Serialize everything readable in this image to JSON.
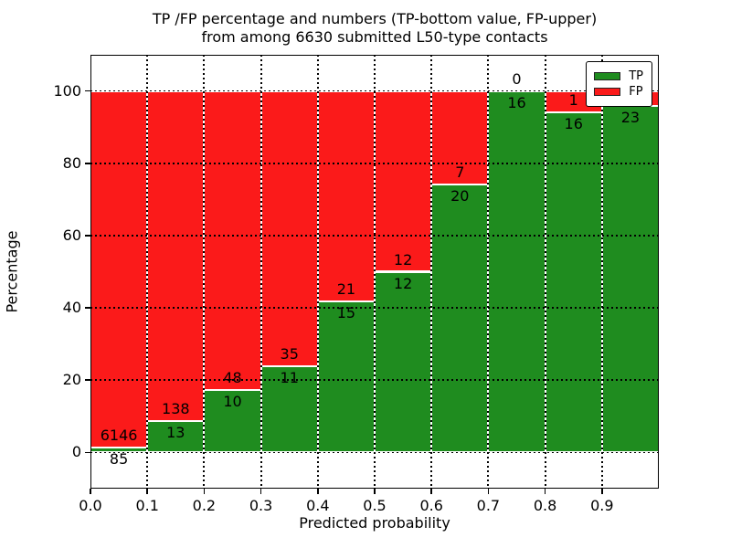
{
  "chart_data": {
    "type": "bar",
    "stacked": true,
    "orientation": "vertical",
    "title_line1": "TP /FP percentage and numbers (TP-bottom value, FP-upper)",
    "title_line2": "from among 6630 submitted L50-type contacts",
    "xlabel": "Predicted probability",
    "ylabel": "Percentage",
    "xlim": [
      0.0,
      1.0
    ],
    "ylim": [
      -10,
      110
    ],
    "grid": true,
    "x_tick_labels": [
      "0.0",
      "0.1",
      "0.2",
      "0.3",
      "0.4",
      "0.5",
      "0.6",
      "0.7",
      "0.8",
      "0.9"
    ],
    "x_tick_values": [
      0.0,
      0.1,
      0.2,
      0.3,
      0.4,
      0.5,
      0.6,
      0.7,
      0.8,
      0.9
    ],
    "y_tick_labels": [
      "0",
      "20",
      "40",
      "60",
      "80",
      "100"
    ],
    "y_tick_values": [
      0,
      20,
      40,
      60,
      80,
      100
    ],
    "bin_edges": [
      0.0,
      0.1,
      0.2,
      0.3,
      0.4,
      0.5,
      0.6,
      0.7,
      0.8,
      0.9,
      1.0
    ],
    "series": [
      {
        "name": "TP",
        "color": "#1f8c1f",
        "values": [
          85,
          13,
          10,
          11,
          15,
          12,
          20,
          16,
          16,
          23
        ]
      },
      {
        "name": "FP",
        "color": "#fb1a1a",
        "values": [
          6146,
          138,
          48,
          35,
          21,
          12,
          7,
          0,
          1,
          1
        ]
      }
    ],
    "bar_value_labels_note": "TP count printed below green top, FP count printed above green top; each bar scaled to 100% = TP+FP",
    "legend": {
      "position": "upper right",
      "items": [
        {
          "label": "TP",
          "color": "#1f8c1f"
        },
        {
          "label": "FP",
          "color": "#fb1a1a"
        }
      ]
    }
  }
}
